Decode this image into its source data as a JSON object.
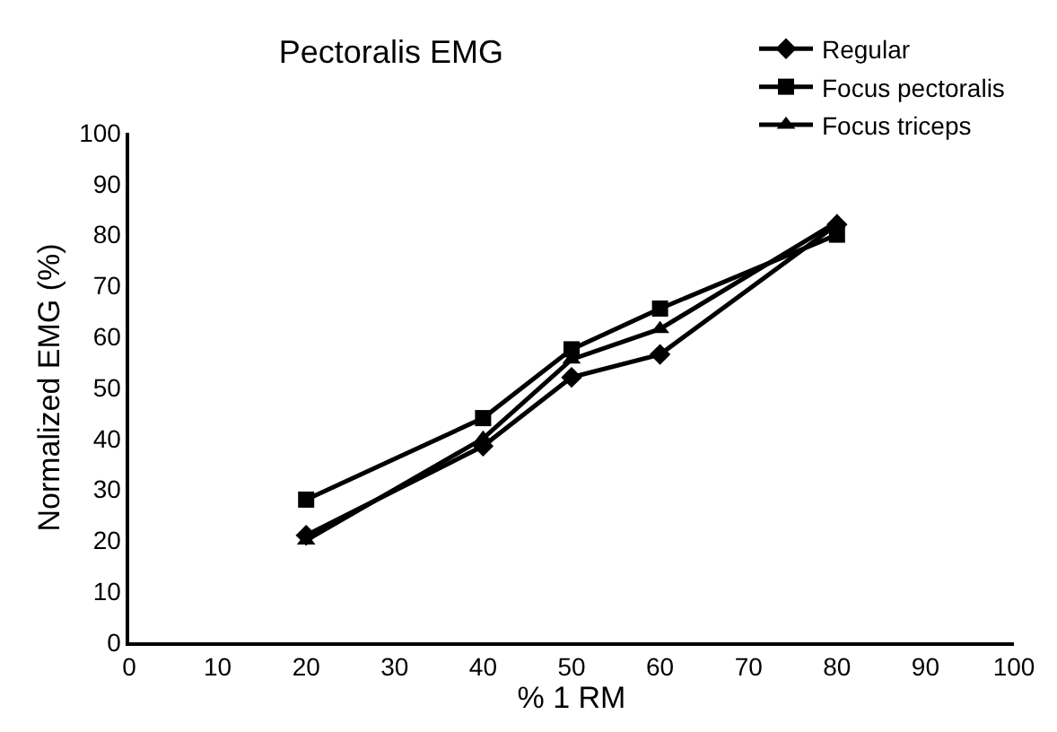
{
  "chart_data": {
    "type": "line",
    "title": "Pectoralis EMG",
    "xlabel": "% 1 RM",
    "ylabel": "Normalized EMG (%)",
    "x": [
      20,
      40,
      50,
      60,
      80
    ],
    "series": [
      {
        "name": "Regular",
        "color": "#000000",
        "marker": "diamond",
        "values": [
          21,
          38.5,
          52,
          56.5,
          82
        ]
      },
      {
        "name": "Focus pectoralis",
        "color": "#000000",
        "marker": "square",
        "values": [
          28,
          44,
          57.5,
          65.5,
          80
        ]
      },
      {
        "name": "Focus triceps",
        "color": "#000000",
        "marker": "triangle",
        "values": [
          20,
          40,
          55.5,
          61.5,
          82.5
        ]
      }
    ],
    "xlim": [
      0,
      100
    ],
    "xticks": [
      0,
      10,
      20,
      30,
      40,
      50,
      60,
      70,
      80,
      90,
      100
    ],
    "ylim": [
      0,
      100
    ],
    "yticks": [
      0,
      10,
      20,
      30,
      40,
      50,
      60,
      70,
      80,
      90,
      100
    ],
    "legend": "top right",
    "line_style": "solid"
  }
}
